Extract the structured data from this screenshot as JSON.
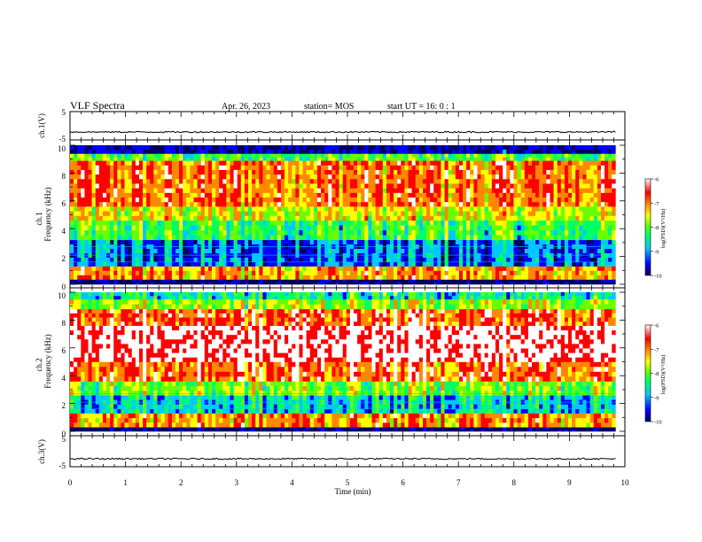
{
  "header": {
    "title": "VLF Spectra",
    "date": "Apr. 26, 2023",
    "station": "station= MOS",
    "start": "start  UT =   16: 0   : 1"
  },
  "chart_data": {
    "type": "heatmap",
    "title": "VLF Spectra",
    "xlabel": "Time  (min)",
    "x_ticks": [
      "0",
      "1",
      "2",
      "3",
      "4",
      "5",
      "6",
      "7",
      "8",
      "9",
      "10"
    ],
    "xlim": [
      0,
      10
    ],
    "data_end_min": 9.83,
    "panels": [
      {
        "id": "ch1-waveform",
        "type": "line",
        "ylabel": "ch.1(V)",
        "ylim": [
          -5,
          5
        ],
        "y_ticks": [
          "5",
          "-5"
        ],
        "baseline": -2.2
      },
      {
        "id": "ch1-spectrogram",
        "type": "heatmap",
        "ylabel_channel": "ch.1",
        "ylabel": "Frequency (kHz)",
        "ylim": [
          0,
          10
        ],
        "y_ticks": [
          "0",
          "2",
          "4",
          "6",
          "8",
          "10"
        ],
        "colorbar": {
          "label": "log(PSD)(V²/Hz)",
          "min": -10,
          "max": -6,
          "ticks": [
            "-6",
            "-7",
            "-8",
            "-9",
            "-10"
          ]
        },
        "bands": [
          {
            "from": 0.0,
            "to": 0.35,
            "level": 0.0
          },
          {
            "from": 0.35,
            "to": 1.3,
            "level": 0.72
          },
          {
            "from": 1.3,
            "to": 3.2,
            "level": 0.18
          },
          {
            "from": 3.2,
            "to": 4.6,
            "level": 0.42
          },
          {
            "from": 4.6,
            "to": 5.6,
            "level": 0.6
          },
          {
            "from": 5.6,
            "to": 8.9,
            "level": 0.78
          },
          {
            "from": 8.9,
            "to": 9.4,
            "level": 0.45
          },
          {
            "from": 9.4,
            "to": 10.0,
            "level": 0.05
          }
        ]
      },
      {
        "id": "ch2-spectrogram",
        "type": "heatmap",
        "ylabel_channel": "ch.2",
        "ylabel": "Frequency (kHz)",
        "ylim": [
          0,
          10
        ],
        "y_ticks": [
          "0",
          "2",
          "4",
          "6",
          "8",
          "10"
        ],
        "colorbar": {
          "label": "log(PSD)(V²/Hz)",
          "min": -10,
          "max": -6,
          "ticks": [
            "-6",
            "-7",
            "-8",
            "-9",
            "-10"
          ]
        },
        "bands": [
          {
            "from": 0.0,
            "to": 0.3,
            "level": 0.0
          },
          {
            "from": 0.3,
            "to": 1.3,
            "level": 0.74
          },
          {
            "from": 1.3,
            "to": 2.6,
            "level": 0.3
          },
          {
            "from": 2.6,
            "to": 3.6,
            "level": 0.52
          },
          {
            "from": 3.6,
            "to": 5.0,
            "level": 0.82
          },
          {
            "from": 5.0,
            "to": 7.6,
            "level": 0.96
          },
          {
            "from": 7.6,
            "to": 8.8,
            "level": 0.84
          },
          {
            "from": 8.8,
            "to": 9.5,
            "level": 0.55
          },
          {
            "from": 9.5,
            "to": 10.0,
            "level": 0.35
          }
        ]
      },
      {
        "id": "ch3-waveform",
        "type": "line",
        "ylabel": "ch.3(V)",
        "ylim": [
          -5,
          5
        ],
        "y_ticks": [
          "5",
          "-5"
        ],
        "baseline": -2.2
      }
    ]
  },
  "colors": {
    "scale": [
      "#000060",
      "#0000ff",
      "#00c8ff",
      "#00ff66",
      "#66ff00",
      "#ffff00",
      "#ff8800",
      "#ff0000",
      "#ffffff"
    ]
  }
}
